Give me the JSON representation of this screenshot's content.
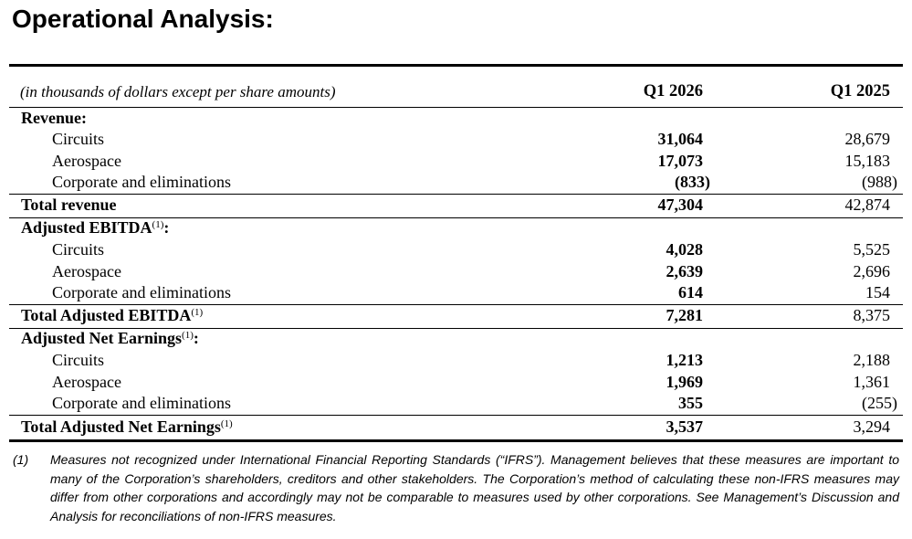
{
  "title": "Operational Analysis:",
  "table": {
    "unit_note": "(in thousands of dollars except per share amounts)",
    "columns": [
      "Q1 2026",
      "Q1 2025"
    ],
    "sections": [
      {
        "header": {
          "text": "Revenue",
          "sup": "",
          "suffix": ":"
        },
        "rows": [
          {
            "label": "Circuits",
            "q1_2026": "31,064",
            "q1_2025": "28,679"
          },
          {
            "label": "Aerospace",
            "q1_2026": "17,073",
            "q1_2025": "15,183"
          },
          {
            "label": "Corporate and eliminations",
            "q1_2026": "(833)",
            "q1_2025": "(988)"
          }
        ],
        "total": {
          "text": "Total revenue",
          "sup": "",
          "q1_2026": "47,304",
          "q1_2025": "42,874"
        }
      },
      {
        "header": {
          "text": "Adjusted EBITDA",
          "sup": "(1)",
          "suffix": ":"
        },
        "rows": [
          {
            "label": "Circuits",
            "q1_2026": "4,028",
            "q1_2025": "5,525"
          },
          {
            "label": "Aerospace",
            "q1_2026": "2,639",
            "q1_2025": "2,696"
          },
          {
            "label": "Corporate and eliminations",
            "q1_2026": "614",
            "q1_2025": "154"
          }
        ],
        "total": {
          "text": "Total Adjusted EBITDA",
          "sup": "(1)",
          "q1_2026": "7,281",
          "q1_2025": "8,375"
        }
      },
      {
        "header": {
          "text": "Adjusted Net Earnings",
          "sup": "(1)",
          "suffix": ":"
        },
        "rows": [
          {
            "label": "Circuits",
            "q1_2026": "1,213",
            "q1_2025": "2,188"
          },
          {
            "label": "Aerospace",
            "q1_2026": "1,969",
            "q1_2025": "1,361"
          },
          {
            "label": "Corporate and eliminations",
            "q1_2026": "355",
            "q1_2025": "(255)"
          }
        ],
        "total": {
          "text": "Total Adjusted Net Earnings",
          "sup": "(1)",
          "q1_2026": "3,537",
          "q1_2025": "3,294"
        }
      }
    ]
  },
  "footnote": {
    "marker": "(1)",
    "text": "Measures not recognized under International Financial Reporting Standards (“IFRS”). Management believes that these measures are important to many of the Corporation’s shareholders, creditors and other stakeholders. The Corporation’s method of calculating these non-IFRS measures may differ from other corporations and accordingly may not be comparable to measures used by other corporations. See Management’s Discussion and Analysis for reconciliations of non-IFRS measures."
  }
}
